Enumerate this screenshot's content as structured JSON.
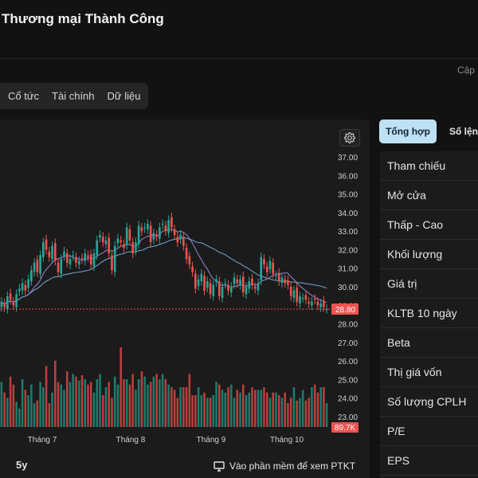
{
  "header": {
    "title": "Thương mại Thành Công",
    "update_label": "Cập n"
  },
  "tabs": [
    "Cổ tức",
    "Tài chính",
    "Dữ liệu"
  ],
  "chart": {
    "settings_icon": "gear-icon",
    "range_label": "5y",
    "software_link": "Vào phần mềm để xem PTKT",
    "software_icon": "monitor-icon",
    "colors": {
      "up": "#26a69a",
      "down": "#ef5350",
      "bg": "#1b1b1b",
      "ma_fast": "#8e7cc3",
      "ma_slow": "#6f9bc4"
    }
  },
  "chart_data": {
    "type": "candlestick",
    "yaxis_ticks": [
      "37.00",
      "36.00",
      "35.00",
      "34.00",
      "33.00",
      "32.00",
      "31.00",
      "30.00",
      "29.00",
      "28.00",
      "27.00",
      "26.00",
      "25.00",
      "24.00",
      "23.00"
    ],
    "last_price_label": "28.80",
    "last_volume_label": "89.7K",
    "xaxis_labels": [
      "Tháng 7",
      "Tháng 8",
      "Tháng 9",
      "Tháng 10"
    ],
    "close": [
      29.2,
      28.9,
      29.5,
      29.3,
      29.0,
      29.6,
      29.9,
      30.2,
      29.8,
      30.4,
      30.9,
      31.3,
      30.8,
      31.7,
      32.4,
      32.0,
      31.6,
      32.2,
      31.4,
      30.8,
      31.5,
      31.9,
      31.3,
      31.5,
      31.7,
      31.3,
      31.4,
      31.5,
      31.8,
      31.6,
      31.2,
      31.8,
      32.5,
      32.8,
      32.4,
      32.5,
      31.8,
      30.9,
      32.2,
      32.6,
      32.4,
      32.1,
      33.2,
      32.5,
      31.8,
      32.4,
      33.3,
      33.0,
      33.2,
      33.4,
      32.4,
      32.9,
      32.7,
      33.2,
      33.4,
      33.0,
      33.6,
      33.2,
      32.8,
      32.4,
      32.8,
      32.2,
      31.5,
      31.2,
      30.8,
      29.9,
      30.4,
      30.7,
      29.8,
      30.3,
      29.6,
      30.1,
      30.4,
      29.5,
      30.0,
      30.2,
      29.8,
      30.0,
      30.5,
      30.2,
      30.4,
      29.7,
      30.0,
      30.3,
      30.1,
      29.9,
      30.2,
      31.6,
      31.2,
      30.8,
      31.4,
      30.7,
      30.6,
      30.3,
      30.5,
      30.2,
      30.1,
      29.5,
      29.8,
      29.2,
      29.5,
      29.4,
      29.3,
      29.1,
      29.2,
      29.3,
      29.0,
      29.1,
      28.9,
      28.8
    ],
    "volume_k": [
      170,
      130,
      110,
      190,
      160,
      95,
      70,
      180,
      140,
      120,
      160,
      90,
      100,
      170,
      150,
      230,
      90,
      130,
      250,
      170,
      160,
      140,
      210,
      170,
      200,
      190,
      175,
      195,
      180,
      160,
      170,
      130,
      180,
      200,
      120,
      150,
      170,
      110,
      190,
      160,
      300,
      180,
      180,
      160,
      200,
      140,
      180,
      210,
      190,
      160,
      170,
      190,
      200,
      180,
      200,
      180,
      160,
      150,
      140,
      110,
      150,
      150,
      150,
      200,
      120,
      120,
      150,
      120,
      130,
      110,
      110,
      120,
      170,
      160,
      140,
      130,
      150,
      160,
      110,
      140,
      130,
      160,
      120,
      130,
      150,
      140,
      140,
      140,
      150,
      130,
      110,
      130,
      130,
      120,
      110,
      130,
      90,
      110,
      150,
      100,
      110,
      140,
      100,
      110,
      150,
      160,
      130,
      150,
      150,
      89.7
    ]
  },
  "side": {
    "tab_active": "Tổng hợp",
    "tab_second": "Số lệnh",
    "rows": [
      "Tham chiếu",
      "Mở cửa",
      "Thấp - Cao",
      "Khối lượng",
      "Giá trị",
      "KLTB 10 ngày",
      "Beta",
      "Thị giá vốn",
      "Số lượng CPLH",
      "P/E",
      "EPS"
    ]
  }
}
